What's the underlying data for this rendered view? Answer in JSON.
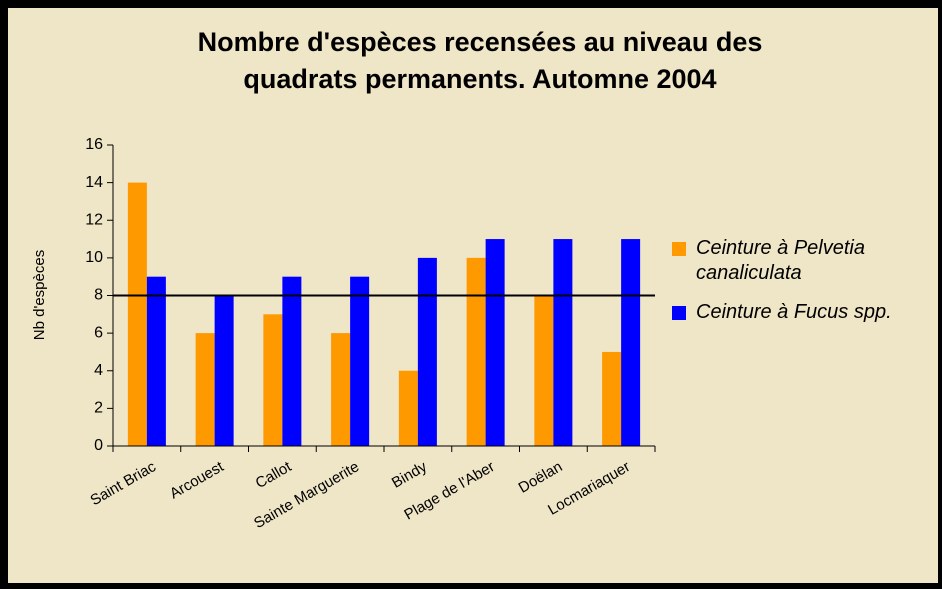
{
  "chart_data": {
    "type": "bar",
    "title": "Nombre d'espèces recensées au niveau des quadrats permanents. Automne 2004",
    "y_label": "Nb d'espèces",
    "categories": [
      "Saint Briac",
      "Arcouest",
      "Callot",
      "Sainte Marguerite",
      "Bindy",
      "Plage de l'Aber",
      "Doëlan",
      "Locmariaquer"
    ],
    "series": [
      {
        "name": "Ceinture à Pelvetia canaliculata",
        "color": "#ff9900",
        "values": [
          14,
          6,
          7,
          6,
          4,
          10,
          8,
          5
        ]
      },
      {
        "name": "Ceinture à Fucus spp.",
        "color": "#0000ff",
        "values": [
          9,
          8,
          9,
          9,
          10,
          11,
          11,
          11
        ]
      }
    ],
    "reference_line": 8,
    "ylim": [
      0,
      16
    ],
    "yticks": [
      0,
      2,
      4,
      6,
      8,
      10,
      12,
      14,
      16
    ],
    "legend": "right"
  }
}
